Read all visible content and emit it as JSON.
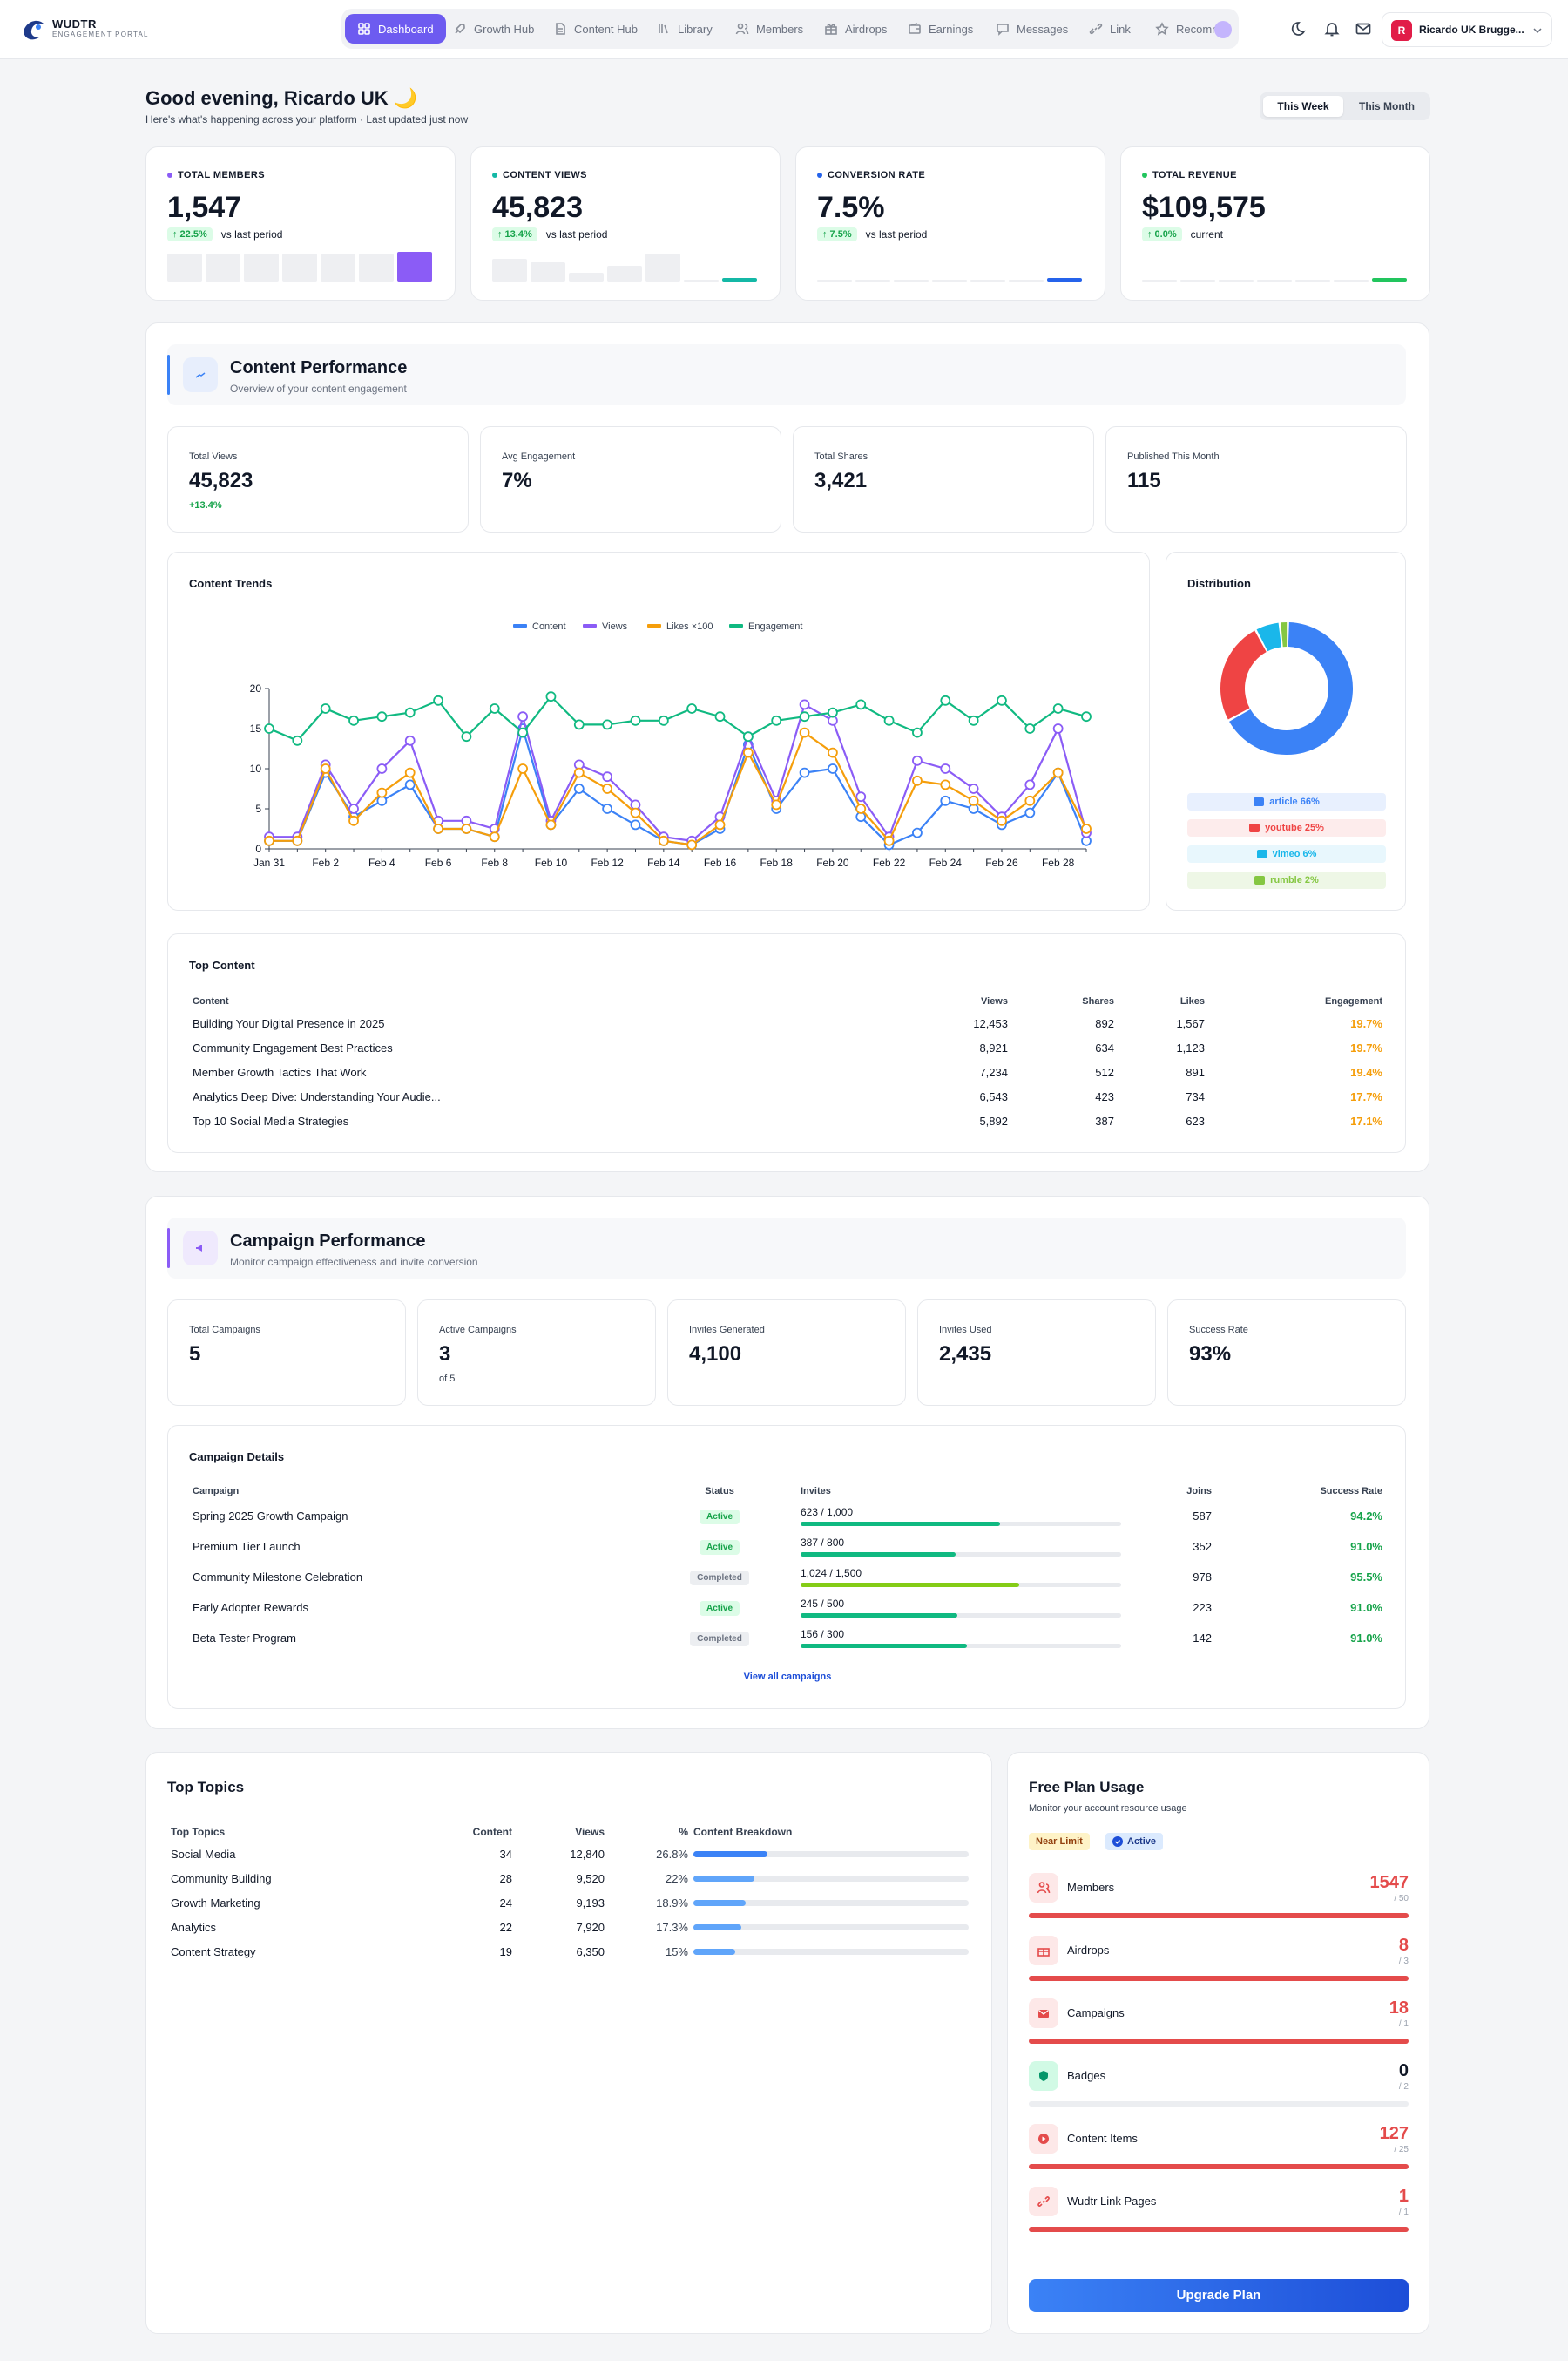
{
  "header": {
    "brand": "WUDTR",
    "brand_sub": "ENGAGEMENT PORTAL",
    "nav": [
      {
        "label": "Dashboard",
        "icon": "grid-icon"
      },
      {
        "label": "Growth Hub",
        "icon": "rocket-icon"
      },
      {
        "label": "Content Hub",
        "icon": "document-icon"
      },
      {
        "label": "Library",
        "icon": "library-icon"
      },
      {
        "label": "Members",
        "icon": "users-icon"
      },
      {
        "label": "Airdrops",
        "icon": "gift-icon"
      },
      {
        "label": "Earnings",
        "icon": "wallet-icon"
      },
      {
        "label": "Messages",
        "icon": "chat-icon"
      },
      {
        "label": "Link",
        "icon": "link-icon"
      },
      {
        "label": "Recomm",
        "icon": "star-icon"
      }
    ],
    "user_initial": "R",
    "user_name": "Ricardo UK Brugge..."
  },
  "greeting": {
    "title": "Good evening, Ricardo UK 🌙",
    "subtitle": "Here's what's happening across your platform · Last updated just now",
    "period_tabs": [
      "This Week",
      "This Month"
    ],
    "active_period": "This Week"
  },
  "stats": [
    {
      "label": "TOTAL MEMBERS",
      "value": "1,547",
      "change": "↑ 22.5%",
      "note": "vs last period",
      "dot": "#8b5cf6",
      "accent": "#8b5cf6"
    },
    {
      "label": "CONTENT VIEWS",
      "value": "45,823",
      "change": "↑ 13.4%",
      "note": "vs last period",
      "dot": "#14b8a6",
      "accent": "#14b8a6"
    },
    {
      "label": "CONVERSION RATE",
      "value": "7.5%",
      "change": "↑ 7.5%",
      "note": "vs last period",
      "dot": "#2563eb",
      "accent": "#2563eb"
    },
    {
      "label": "TOTAL REVENUE",
      "value": "$109,575",
      "change": "↑ 0.0%",
      "note": "current",
      "dot": "#22c55e",
      "accent": "#22c55e"
    }
  ],
  "content_section": {
    "title": "Content Performance",
    "subtitle": "Overview of your content engagement",
    "metrics": [
      {
        "label": "Total Views",
        "value": "45,823",
        "extra": "+13.4%"
      },
      {
        "label": "Avg Engagement",
        "value": "7%",
        "extra": ""
      },
      {
        "label": "Total Shares",
        "value": "3,421",
        "extra": ""
      },
      {
        "label": "Published This Month",
        "value": "115",
        "extra": ""
      }
    ],
    "trends_title": "Content Trends",
    "distribution_title": "Distribution",
    "distribution": [
      {
        "label": "article 66%",
        "value": 66,
        "color": "#3b82f6",
        "bg": "#e8f0fe"
      },
      {
        "label": "youtube 25%",
        "value": 25,
        "color": "#ef4444",
        "bg": "#fdecec"
      },
      {
        "label": "vimeo 6%",
        "value": 6,
        "color": "#1ab7ea",
        "bg": "#e8f7fd"
      },
      {
        "label": "rumble 2%",
        "value": 2,
        "color": "#85c742",
        "bg": "#eef7e6"
      }
    ],
    "top_content_title": "Top Content",
    "top_content_columns": [
      "Content",
      "Views",
      "Shares",
      "Likes",
      "Engagement"
    ],
    "top_content": [
      {
        "title": "Building Your Digital Presence in 2025",
        "views": "12,453",
        "shares": "892",
        "likes": "1,567",
        "engagement": "19.7%"
      },
      {
        "title": "Community Engagement Best Practices",
        "views": "8,921",
        "shares": "634",
        "likes": "1,123",
        "engagement": "19.7%"
      },
      {
        "title": "Member Growth Tactics That Work",
        "views": "7,234",
        "shares": "512",
        "likes": "891",
        "engagement": "19.4%"
      },
      {
        "title": "Analytics Deep Dive: Understanding Your Audie...",
        "views": "6,543",
        "shares": "423",
        "likes": "734",
        "engagement": "17.7%"
      },
      {
        "title": "Top 10 Social Media Strategies",
        "views": "5,892",
        "shares": "387",
        "likes": "623",
        "engagement": "17.1%"
      }
    ]
  },
  "chart_data": {
    "type": "line",
    "title": "Content Trends",
    "x": [
      "Jan 31",
      "Feb 1",
      "Feb 2",
      "Feb 3",
      "Feb 4",
      "Feb 5",
      "Feb 6",
      "Feb 7",
      "Feb 8",
      "Feb 9",
      "Feb 10",
      "Feb 11",
      "Feb 12",
      "Feb 13",
      "Feb 14",
      "Feb 15",
      "Feb 16",
      "Feb 17",
      "Feb 18",
      "Feb 19",
      "Feb 20",
      "Feb 21",
      "Feb 22",
      "Feb 23",
      "Feb 24",
      "Feb 25",
      "Feb 26",
      "Feb 27",
      "Feb 28",
      "Mar 1"
    ],
    "x_tick_labels": [
      "Jan 31",
      "Feb 2",
      "Feb 4",
      "Feb 6",
      "Feb 8",
      "Feb 10",
      "Feb 12",
      "Feb 14",
      "Feb 16",
      "Feb 18",
      "Feb 20",
      "Feb 22",
      "Feb 24",
      "Feb 26",
      "Feb 28"
    ],
    "ylim": [
      0,
      20
    ],
    "y_ticks": [
      0,
      5,
      10,
      15,
      20
    ],
    "legend_position": "top-center",
    "series": [
      {
        "name": "Content",
        "color": "#3b82f6",
        "values": [
          1,
          1,
          9.5,
          4,
          6,
          8,
          2.5,
          2.5,
          1.5,
          15,
          3,
          7.5,
          5,
          3,
          1,
          0.5,
          2.5,
          13,
          5,
          9.5,
          10,
          4,
          0.5,
          2,
          6,
          5,
          3,
          4.5,
          9.5,
          1
        ]
      },
      {
        "name": "Views",
        "color": "#8b5cf6",
        "values": [
          1.5,
          1.5,
          10.5,
          5,
          10,
          13.5,
          3.5,
          3.5,
          2.5,
          16.5,
          3.5,
          10.5,
          9,
          5.5,
          1.5,
          1,
          4,
          14,
          6,
          18,
          16,
          6.5,
          1.5,
          11,
          10,
          7.5,
          4,
          8,
          15,
          2
        ]
      },
      {
        "name": "Likes ×100",
        "color": "#f59e0b",
        "values": [
          1,
          1,
          10,
          3.5,
          7,
          9.5,
          2.5,
          2.5,
          1.5,
          10,
          3,
          9.5,
          7.5,
          4.5,
          1,
          0.5,
          3,
          12,
          5.5,
          14.5,
          12,
          5,
          1,
          8.5,
          8,
          6,
          3.5,
          6,
          9.5,
          2.5
        ]
      },
      {
        "name": "Engagement",
        "color": "#10b981",
        "values": [
          15,
          13.5,
          17.5,
          16,
          16.5,
          17,
          18.5,
          14,
          17.5,
          14.5,
          19,
          15.5,
          15.5,
          16,
          16,
          17.5,
          16.5,
          14,
          16,
          16.5,
          17,
          18,
          16,
          14.5,
          18.5,
          16,
          18.5,
          15,
          17.5,
          16.5
        ]
      }
    ]
  },
  "campaign_section": {
    "title": "Campaign Performance",
    "subtitle": "Monitor campaign effectiveness and invite conversion",
    "metrics": [
      {
        "label": "Total Campaigns",
        "value": "5",
        "extra": ""
      },
      {
        "label": "Active Campaigns",
        "value": "3",
        "extra": "of 5"
      },
      {
        "label": "Invites Generated",
        "value": "4,100",
        "extra": ""
      },
      {
        "label": "Invites Used",
        "value": "2,435",
        "extra": ""
      },
      {
        "label": "Success Rate",
        "value": "93%",
        "extra": ""
      }
    ],
    "details_title": "Campaign Details",
    "columns": [
      "Campaign",
      "Status",
      "Invites",
      "Joins",
      "Success Rate"
    ],
    "campaigns": [
      {
        "name": "Spring 2025 Growth Campaign",
        "status": "Active",
        "invites": "623 / 1,000",
        "fill": 0.623,
        "bar": "#10b981",
        "joins": "587",
        "rate": "94.2%"
      },
      {
        "name": "Premium Tier Launch",
        "status": "Active",
        "invites": "387 / 800",
        "fill": 0.484,
        "bar": "#10b981",
        "joins": "352",
        "rate": "91.0%"
      },
      {
        "name": "Community Milestone Celebration",
        "status": "Completed",
        "invites": "1,024 / 1,500",
        "fill": 0.683,
        "bar": "#84cc16",
        "joins": "978",
        "rate": "95.5%"
      },
      {
        "name": "Early Adopter Rewards",
        "status": "Active",
        "invites": "245 / 500",
        "fill": 0.49,
        "bar": "#10b981",
        "joins": "223",
        "rate": "91.0%"
      },
      {
        "name": "Beta Tester Program",
        "status": "Completed",
        "invites": "156 / 300",
        "fill": 0.52,
        "bar": "#10b981",
        "joins": "142",
        "rate": "91.0%"
      }
    ],
    "view_all": "View all campaigns"
  },
  "topics": {
    "title": "Top Topics",
    "columns": [
      "Top Topics",
      "Content",
      "Views",
      "%",
      "Content Breakdown"
    ],
    "rows": [
      {
        "topic": "Social Media",
        "content": "34",
        "views": "12,840",
        "pct": "26.8%",
        "fill": 0.268
      },
      {
        "topic": "Community Building",
        "content": "28",
        "views": "9,520",
        "pct": "22%",
        "fill": 0.22
      },
      {
        "topic": "Growth Marketing",
        "content": "24",
        "views": "9,193",
        "pct": "18.9%",
        "fill": 0.189
      },
      {
        "topic": "Analytics",
        "content": "22",
        "views": "7,920",
        "pct": "17.3%",
        "fill": 0.173
      },
      {
        "topic": "Content Strategy",
        "content": "19",
        "views": "6,350",
        "pct": "15%",
        "fill": 0.15
      }
    ]
  },
  "plan": {
    "title": "Free Plan Usage",
    "subtitle": "Monitor your account resource usage",
    "badge_limit": "Near Limit",
    "badge_active": "Active",
    "items": [
      {
        "name": "Members",
        "value": "1547",
        "max": "/ 50",
        "fill": 1.0,
        "over": true,
        "icon": "users-icon"
      },
      {
        "name": "Airdrops",
        "value": "8",
        "max": "/ 3",
        "fill": 1.0,
        "over": true,
        "icon": "gift-icon"
      },
      {
        "name": "Campaigns",
        "value": "18",
        "max": "/ 1",
        "fill": 1.0,
        "over": true,
        "icon": "mail-icon"
      },
      {
        "name": "Badges",
        "value": "0",
        "max": "/ 2",
        "fill": 0.0,
        "over": false,
        "icon": "shield-icon"
      },
      {
        "name": "Content Items",
        "value": "127",
        "max": "/ 25",
        "fill": 1.0,
        "over": true,
        "icon": "play-icon"
      },
      {
        "name": "Wudtr Link Pages",
        "value": "1",
        "max": "/ 1",
        "fill": 1.0,
        "over": true,
        "icon": "link-icon"
      }
    ],
    "upgrade": "Upgrade Plan"
  }
}
